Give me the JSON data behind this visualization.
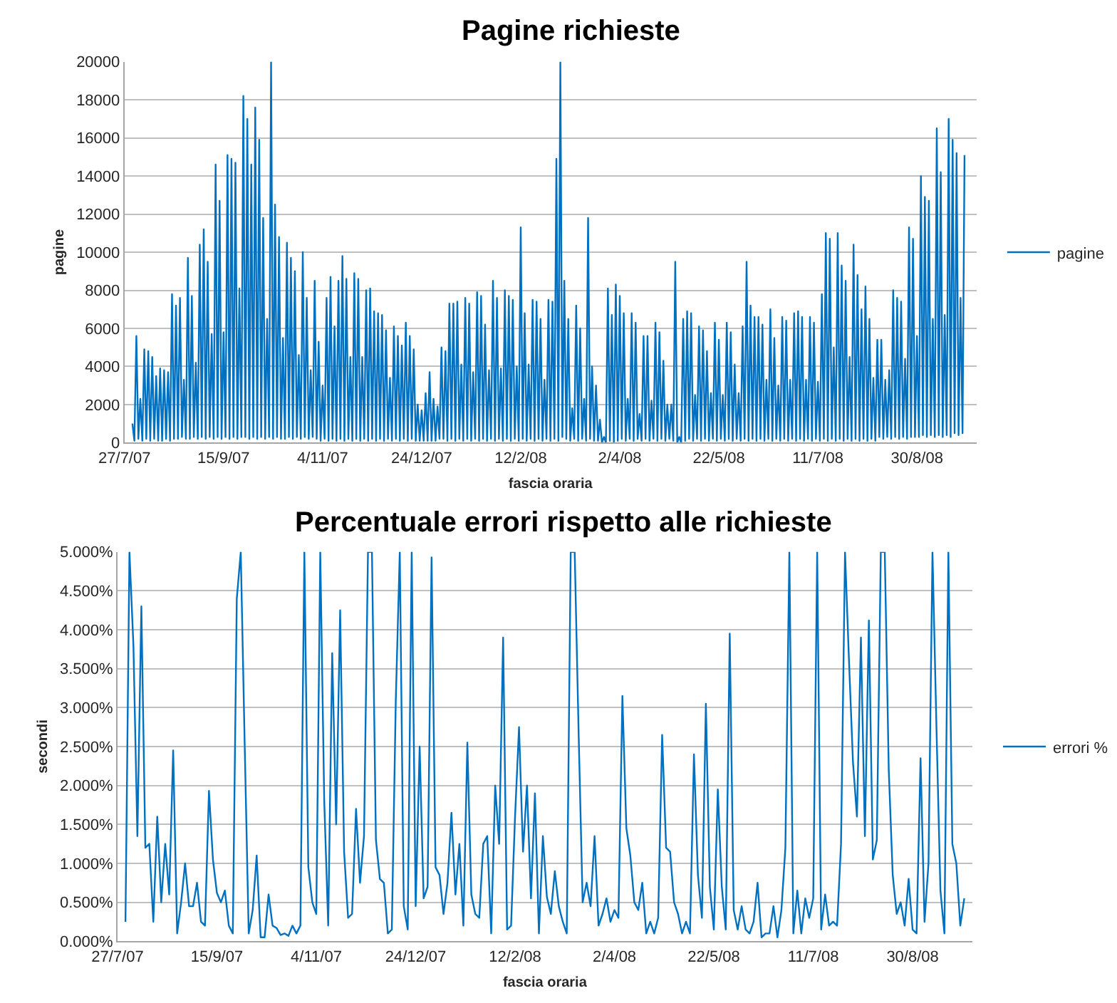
{
  "chart_data": [
    {
      "type": "line",
      "title": "Pagine richieste",
      "xlabel": "fascia oraria",
      "ylabel": "pagine",
      "grid": "y",
      "legend": "right",
      "line_style": "solid",
      "ylim": [
        0,
        20000
      ],
      "yticks": [
        0,
        2000,
        4000,
        6000,
        8000,
        10000,
        12000,
        14000,
        16000,
        18000,
        20000
      ],
      "categories": [
        "27/7/07",
        null,
        null,
        null,
        null,
        null,
        null,
        null,
        null,
        null,
        null,
        null,
        null,
        null,
        null,
        null,
        null,
        null,
        null,
        null,
        null,
        null,
        null,
        null,
        null,
        null,
        null,
        null,
        null,
        null,
        null,
        null,
        null,
        null,
        null,
        null,
        null,
        null,
        null,
        null,
        null,
        null,
        null,
        null,
        null,
        null,
        null,
        null,
        null,
        null,
        "15/9/07",
        null,
        null,
        null,
        null,
        null,
        null,
        null,
        null,
        null,
        null,
        null,
        null,
        null,
        null,
        null,
        null,
        null,
        null,
        null,
        null,
        null,
        null,
        null,
        null,
        null,
        null,
        null,
        null,
        null,
        null,
        null,
        null,
        null,
        null,
        null,
        null,
        null,
        null,
        null,
        null,
        null,
        null,
        null,
        null,
        null,
        null,
        null,
        null,
        null,
        "4/11/07",
        null,
        null,
        null,
        null,
        null,
        null,
        null,
        null,
        null,
        null,
        null,
        null,
        null,
        null,
        null,
        null,
        null,
        null,
        null,
        null,
        null,
        null,
        null,
        null,
        null,
        null,
        null,
        null,
        null,
        null,
        null,
        null,
        null,
        null,
        null,
        null,
        null,
        null,
        null,
        null,
        null,
        null,
        null,
        null,
        null,
        null,
        null,
        null,
        null,
        "24/12/07",
        null,
        null,
        null,
        null,
        null,
        null,
        null,
        null,
        null,
        null,
        null,
        null,
        null,
        null,
        null,
        null,
        null,
        null,
        null,
        null,
        null,
        null,
        null,
        null,
        null,
        null,
        null,
        null,
        null,
        null,
        null,
        null,
        null,
        null,
        null,
        null,
        null,
        null,
        null,
        null,
        null,
        null,
        null,
        null,
        null,
        null,
        null,
        null,
        null,
        "12/2/08",
        null,
        null,
        null,
        null,
        null,
        null,
        null,
        null,
        null,
        null,
        null,
        null,
        null,
        null,
        null,
        null,
        null,
        null,
        null,
        null,
        null,
        null,
        null,
        null,
        null,
        null,
        null,
        null,
        null,
        null,
        null,
        null,
        null,
        null,
        null,
        null,
        null,
        null,
        null,
        null,
        null,
        null,
        null,
        null,
        null,
        null,
        null,
        null,
        null,
        "2/4/08",
        null,
        null,
        null,
        null,
        null,
        null,
        null,
        null,
        null,
        null,
        null,
        null,
        null,
        null,
        null,
        null,
        null,
        null,
        null,
        null,
        null,
        null,
        null,
        null,
        null,
        null,
        null,
        null,
        null,
        null,
        null,
        null,
        null,
        null,
        null,
        null,
        null,
        null,
        null,
        null,
        null,
        null,
        null,
        null,
        null,
        null,
        null,
        null,
        null,
        "22/5/08",
        null,
        null,
        null,
        null,
        null,
        null,
        null,
        null,
        null,
        null,
        null,
        null,
        null,
        null,
        null,
        null,
        null,
        null,
        null,
        null,
        null,
        null,
        null,
        null,
        null,
        null,
        null,
        null,
        null,
        null,
        null,
        null,
        null,
        null,
        null,
        null,
        null,
        null,
        null,
        null,
        null,
        null,
        null,
        null,
        null,
        null,
        null,
        null,
        null,
        "11/7/08",
        null,
        null,
        null,
        null,
        null,
        null,
        null,
        null,
        null,
        null,
        null,
        null,
        null,
        null,
        null,
        null,
        null,
        null,
        null,
        null,
        null,
        null,
        null,
        null,
        null,
        null,
        null,
        null,
        null,
        null,
        null,
        null,
        null,
        null,
        null,
        null,
        null,
        null,
        null,
        null,
        null,
        null,
        null,
        null,
        null,
        null,
        null,
        null,
        null,
        "30/8/08",
        null,
        null,
        null,
        null,
        null,
        null,
        null,
        null,
        null,
        null,
        null,
        null,
        null,
        null,
        null,
        null,
        null,
        null,
        null,
        null,
        null,
        null,
        null,
        null,
        null,
        null,
        null,
        null,
        null,
        null
      ],
      "series": [
        {
          "name": "pagine",
          "color": "#0070c0",
          "values": [
            null,
            null,
            null,
            null,
            1000,
            100,
            5600,
            200,
            2300,
            100,
            4900,
            200,
            4800,
            100,
            4500,
            200,
            3500,
            100,
            3900,
            100,
            3800,
            200,
            3700,
            100,
            7800,
            200,
            7200,
            200,
            7600,
            300,
            3300,
            200,
            9700,
            200,
            7700,
            300,
            4200,
            200,
            10400,
            300,
            11200,
            200,
            9500,
            300,
            5700,
            200,
            14600,
            300,
            12700,
            200,
            5800,
            300,
            15100,
            200,
            14900,
            300,
            14700,
            200,
            8100,
            300,
            18200,
            300,
            17000,
            200,
            14600,
            300,
            17600,
            200,
            15900,
            300,
            11800,
            200,
            6500,
            300,
            20000,
            200,
            12500,
            300,
            10800,
            200,
            5500,
            200,
            10500,
            300,
            9700,
            200,
            9000,
            300,
            4600,
            200,
            10000,
            300,
            7600,
            200,
            3800,
            300,
            8500,
            200,
            5300,
            100,
            3000,
            200,
            7600,
            100,
            8700,
            200,
            6100,
            100,
            8500,
            200,
            9800,
            100,
            8600,
            200,
            4500,
            100,
            8900,
            200,
            8600,
            100,
            4500,
            200,
            8000,
            100,
            8100,
            200,
            6900,
            100,
            6800,
            200,
            6700,
            100,
            5900,
            200,
            3400,
            100,
            6100,
            200,
            5600,
            100,
            5100,
            200,
            6300,
            100,
            5600,
            200,
            4900,
            100,
            2000,
            100,
            1700,
            100,
            2600,
            100,
            3700,
            100,
            2300,
            100,
            1900,
            200,
            5000,
            200,
            4800,
            100,
            7300,
            200,
            7300,
            100,
            7400,
            200,
            4100,
            100,
            7600,
            200,
            7300,
            100,
            3700,
            200,
            7900,
            100,
            7700,
            200,
            6200,
            100,
            3800,
            200,
            8500,
            100,
            7600,
            200,
            3900,
            100,
            8000,
            200,
            7700,
            100,
            7500,
            200,
            4000,
            100,
            11300,
            200,
            6800,
            100,
            4100,
            200,
            7500,
            100,
            7400,
            200,
            6500,
            100,
            3300,
            200,
            7500,
            100,
            7400,
            200,
            14900,
            100,
            20000,
            300,
            8500,
            200,
            6500,
            100,
            1800,
            200,
            7200,
            100,
            6000,
            200,
            2300,
            100,
            11800,
            200,
            4000,
            100,
            3000,
            100,
            1200,
            0,
            300,
            0,
            8100,
            100,
            6700,
            0,
            8300,
            100,
            7700,
            200,
            6800,
            100,
            2300,
            200,
            6800,
            100,
            6300,
            200,
            1500,
            100,
            5600,
            200,
            5600,
            100,
            2200,
            200,
            6300,
            100,
            5800,
            200,
            4300,
            100,
            2000,
            200,
            2000,
            100,
            9500,
            0,
            300,
            0,
            6500,
            100,
            6900,
            200,
            6800,
            100,
            2500,
            200,
            6100,
            100,
            5900,
            200,
            4800,
            100,
            2600,
            200,
            6300,
            100,
            5400,
            200,
            2500,
            100,
            6300,
            200,
            5800,
            100,
            4100,
            200,
            2600,
            100,
            6100,
            200,
            9500,
            100,
            7200,
            200,
            6600,
            100,
            6600,
            200,
            6200,
            100,
            3300,
            200,
            7000,
            100,
            5500,
            200,
            3000,
            100,
            6600,
            200,
            6400,
            100,
            3300,
            200,
            6800,
            100,
            6900,
            200,
            6600,
            100,
            3300,
            200,
            6600,
            100,
            6300,
            200,
            3200,
            100,
            7800,
            200,
            11000,
            100,
            10700,
            200,
            5000,
            100,
            11000,
            200,
            9300,
            100,
            8500,
            200,
            4500,
            100,
            10400,
            200,
            8800,
            100,
            7000,
            200,
            8200,
            100,
            6500,
            200,
            3400,
            100,
            5400,
            300,
            5400,
            200,
            3300,
            300,
            3800,
            200,
            8000,
            300,
            7600,
            200,
            7400,
            300,
            4400,
            200,
            11300,
            300,
            10700,
            300,
            5600,
            300,
            14000,
            400,
            12900,
            300,
            12700,
            400,
            6500,
            300,
            16500,
            400,
            14200,
            300,
            6700,
            400,
            17000,
            300,
            15900,
            500,
            15200,
            400,
            7600,
            500,
            15100,
            null,
            null,
            null,
            null,
            null,
            null
          ]
        }
      ]
    },
    {
      "type": "line",
      "title": "Percentuale errori rispetto alle richieste",
      "xlabel": "fascia oraria",
      "ylabel": "secondi",
      "grid": "y",
      "legend": "right",
      "line_style": "solid",
      "ylim": [
        0,
        5
      ],
      "yticks": [
        {
          "value": 0,
          "label": "0.000%"
        },
        {
          "value": 0.5,
          "label": "0.500%"
        },
        {
          "value": 1,
          "label": "1.000%"
        },
        {
          "value": 1.5,
          "label": "1.500%"
        },
        {
          "value": 2,
          "label": "2.000%"
        },
        {
          "value": 2.5,
          "label": "2.500%"
        },
        {
          "value": 3,
          "label": "3.000%"
        },
        {
          "value": 3.5,
          "label": "3.500%"
        },
        {
          "value": 4,
          "label": "4.000%"
        },
        {
          "value": 4.5,
          "label": "4.500%"
        },
        {
          "value": 5,
          "label": "5.000%"
        }
      ],
      "categories": [
        "27/7/07",
        null,
        null,
        null,
        null,
        null,
        null,
        null,
        null,
        null,
        null,
        null,
        null,
        null,
        null,
        null,
        null,
        null,
        null,
        null,
        null,
        null,
        null,
        null,
        null,
        "15/9/07",
        null,
        null,
        null,
        null,
        null,
        null,
        null,
        null,
        null,
        null,
        null,
        null,
        null,
        null,
        null,
        null,
        null,
        null,
        null,
        null,
        null,
        null,
        null,
        null,
        "4/11/07",
        null,
        null,
        null,
        null,
        null,
        null,
        null,
        null,
        null,
        null,
        null,
        null,
        null,
        null,
        null,
        null,
        null,
        null,
        null,
        null,
        null,
        null,
        null,
        null,
        "24/12/07",
        null,
        null,
        null,
        null,
        null,
        null,
        null,
        null,
        null,
        null,
        null,
        null,
        null,
        null,
        null,
        null,
        null,
        null,
        null,
        null,
        null,
        null,
        null,
        null,
        "12/2/08",
        null,
        null,
        null,
        null,
        null,
        null,
        null,
        null,
        null,
        null,
        null,
        null,
        null,
        null,
        null,
        null,
        null,
        null,
        null,
        null,
        null,
        null,
        null,
        null,
        "2/4/08",
        null,
        null,
        null,
        null,
        null,
        null,
        null,
        null,
        null,
        null,
        null,
        null,
        null,
        null,
        null,
        null,
        null,
        null,
        null,
        null,
        null,
        null,
        null,
        null,
        "22/5/08",
        null,
        null,
        null,
        null,
        null,
        null,
        null,
        null,
        null,
        null,
        null,
        null,
        null,
        null,
        null,
        null,
        null,
        null,
        null,
        null,
        null,
        null,
        null,
        null,
        "11/7/08",
        null,
        null,
        null,
        null,
        null,
        null,
        null,
        null,
        null,
        null,
        null,
        null,
        null,
        null,
        null,
        null,
        null,
        null,
        null,
        null,
        null,
        null,
        null,
        null,
        "30/8/08",
        null,
        null,
        null,
        null,
        null,
        null,
        null,
        null,
        null,
        null,
        null,
        null,
        null,
        null,
        null
      ],
      "series": [
        {
          "name": "errori %",
          "color": "#0070c0",
          "values": [
            null,
            null,
            0.25,
            5,
            3.8,
            1.35,
            4.3,
            1.2,
            1.25,
            0.25,
            1.6,
            0.5,
            1.25,
            0.6,
            2.45,
            0.1,
            0.5,
            1,
            0.45,
            0.45,
            0.75,
            0.25,
            0.2,
            1.93,
            1.05,
            0.62,
            0.5,
            0.65,
            0.2,
            0.1,
            4.4,
            5,
            2.5,
            0.1,
            0.4,
            1.1,
            0.05,
            0.05,
            0.6,
            0.2,
            0.17,
            0.08,
            0.1,
            0.07,
            0.2,
            0.1,
            0.2,
            5,
            0.95,
            0.5,
            0.35,
            5,
            1.8,
            0.2,
            3.7,
            1.5,
            4.25,
            1.15,
            0.3,
            0.35,
            1.7,
            0.75,
            1.35,
            5,
            5,
            1.3,
            0.8,
            0.75,
            0.1,
            0.15,
            3.1,
            5,
            0.45,
            0.15,
            5,
            0.45,
            2.5,
            0.55,
            0.7,
            4.93,
            0.95,
            0.85,
            0.35,
            0.75,
            1.65,
            0.6,
            1.25,
            0.2,
            2.55,
            0.6,
            0.35,
            0.3,
            1.25,
            1.35,
            0.1,
            2,
            1.25,
            3.9,
            0.15,
            0.2,
            1.6,
            2.75,
            1.15,
            2,
            0.55,
            1.9,
            0.1,
            1.35,
            0.57,
            0.35,
            0.9,
            0.45,
            0.25,
            0.1,
            5,
            5,
            2.65,
            0.5,
            0.75,
            0.45,
            1.35,
            0.2,
            0.35,
            0.55,
            0.25,
            0.4,
            0.3,
            3.15,
            1.45,
            1.1,
            0.5,
            0.4,
            0.75,
            0.1,
            0.25,
            0.1,
            0.3,
            2.65,
            1.2,
            1.15,
            0.5,
            0.35,
            0.1,
            0.25,
            0.1,
            2.4,
            0.85,
            0.3,
            3.05,
            0.7,
            0.15,
            1.95,
            0.7,
            0.15,
            3.95,
            0.4,
            0.15,
            0.45,
            0.15,
            0.1,
            0.25,
            0.75,
            0.05,
            0.1,
            0.1,
            0.45,
            0.05,
            0.4,
            1.2,
            5,
            0.1,
            0.65,
            0.1,
            0.55,
            0.3,
            0.55,
            5,
            0.15,
            0.6,
            0.2,
            0.25,
            0.2,
            1.25,
            5,
            3.6,
            2.3,
            1.6,
            3.9,
            1.35,
            4.12,
            1.05,
            1.3,
            5,
            5,
            2.2,
            0.85,
            0.35,
            0.5,
            0.2,
            0.8,
            0.15,
            0.1,
            2.35,
            0.25,
            1,
            5,
            2.75,
            0.65,
            0.1,
            5,
            1.25,
            1,
            0.2,
            0.55,
            null,
            null
          ]
        }
      ]
    }
  ]
}
